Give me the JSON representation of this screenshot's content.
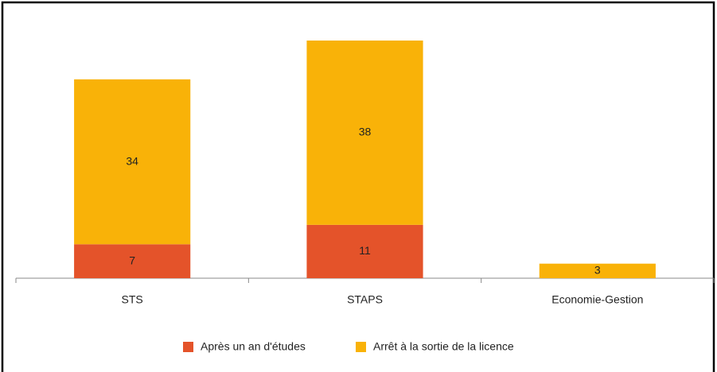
{
  "chart_data": {
    "type": "stacked_bar",
    "categories": [
      "STS",
      "STAPS",
      "Economie-Gestion"
    ],
    "series": [
      {
        "name": "Après un an d'études",
        "color": "#e4532a",
        "values": [
          7,
          11,
          null
        ]
      },
      {
        "name": "Arrêt à la sortie de la licence",
        "color": "#f9b208",
        "values": [
          34,
          38,
          3
        ]
      }
    ]
  }
}
